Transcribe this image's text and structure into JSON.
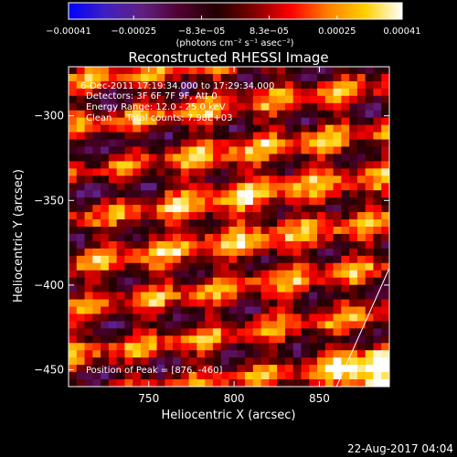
{
  "chart_data": {
    "type": "heatmap",
    "title": "Reconstructed RHESSI Image",
    "xlabel": "Heliocentric X (arcsec)",
    "ylabel": "Heliocentric Y (arcsec)",
    "xlim": [
      703,
      891
    ],
    "ylim": [
      -460,
      -271
    ],
    "x_ticks": [
      {
        "value": 750,
        "label": "750"
      },
      {
        "value": 800,
        "label": "800"
      },
      {
        "value": 850,
        "label": "850"
      }
    ],
    "y_ticks": [
      {
        "value": -300,
        "label": "−300"
      },
      {
        "value": -350,
        "label": "−350"
      },
      {
        "value": -400,
        "label": "−400"
      },
      {
        "value": -450,
        "label": "−450"
      }
    ],
    "colorbar": {
      "range": [
        -0.00041,
        0.00041
      ],
      "ticks": [
        {
          "value": -0.00041,
          "label": "−0.00041"
        },
        {
          "value": -0.00025,
          "label": "−0.00025"
        },
        {
          "value": -8.3e-05,
          "label": "−8.3e−05"
        },
        {
          "value": 8.3e-05,
          "label": "8.3e−05"
        },
        {
          "value": 0.00025,
          "label": "0.00025"
        },
        {
          "value": 0.00041,
          "label": "0.00041"
        }
      ],
      "units": "(photons cm⁻² s⁻¹ asec⁻²)"
    },
    "annotations": {
      "time_range": "6-Dec-2011 17:19:34.000 to 17:29:34.000",
      "detectors": "Detectors: 3F 6F 7F 9F, Att 0",
      "energy_range": "Energy Range: 12.0 - 25.0 keV",
      "method": "Clean     Total counts: 7.98E+03",
      "peak": "Position of Peak = [876, -460]"
    },
    "peak_position": [
      876,
      -460
    ],
    "limb_line": {
      "x": [
        860,
        891
      ],
      "y": [
        -460,
        -390
      ]
    }
  },
  "footer": {
    "timestamp": "22-Aug-2017 04:04"
  },
  "colors": {
    "background": "#000000",
    "text": "#ffffff",
    "colormap": [
      "#0000ff",
      "#4020c0",
      "#602080",
      "#500030",
      "#200000",
      "#800000",
      "#ff0000",
      "#ff8000",
      "#ffd000",
      "#ffffff"
    ]
  }
}
